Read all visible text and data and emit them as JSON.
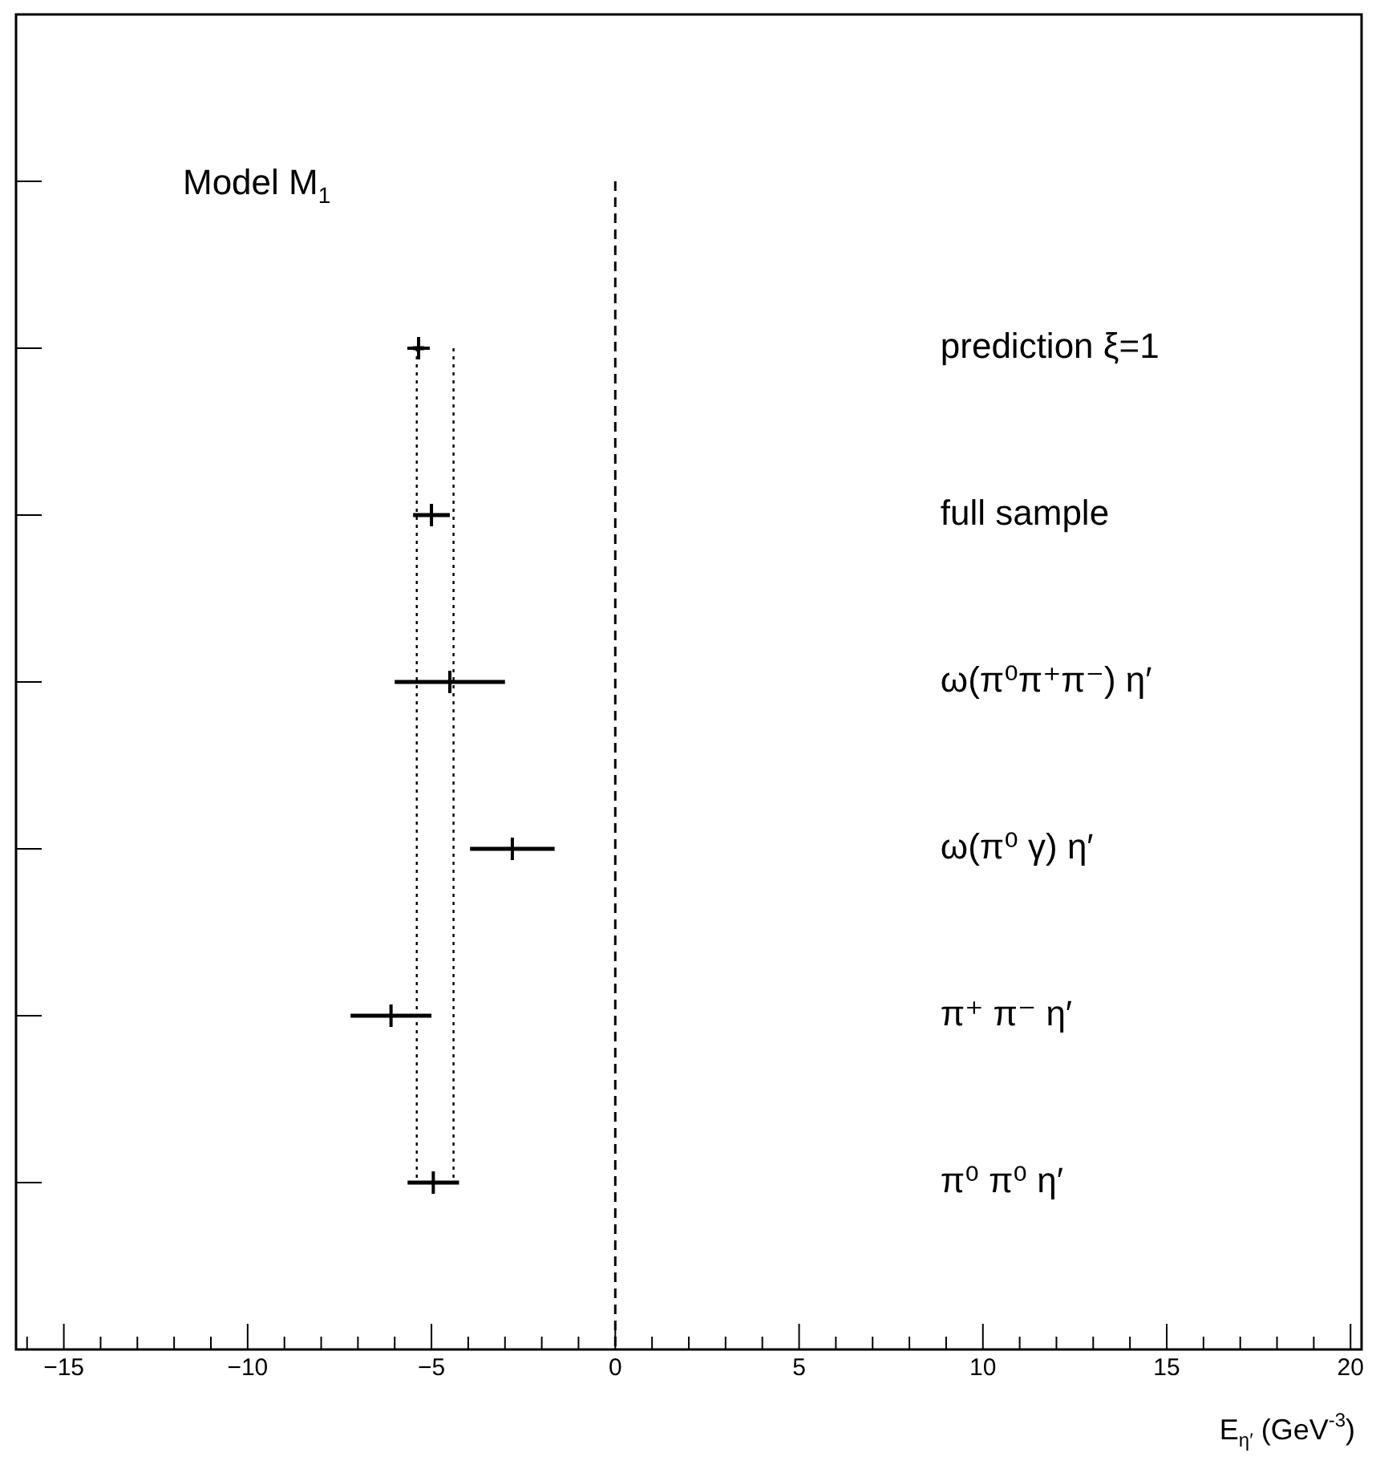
{
  "chart_data": {
    "type": "scatter",
    "orientation": "horizontal",
    "title": "Model M$_{1}$",
    "xlabel": "E$_{η′}$ (GeV$^{-3}$)",
    "categories": [
      null,
      "prediction ξ=1",
      "full sample",
      "ω(π⁰π⁺π⁻) η′",
      "ω(π⁰ γ) η′",
      "π⁺ π⁻ η′",
      "π⁰ π⁰ η′"
    ],
    "series": [
      {
        "color": "#000000",
        "values": [
          null,
          -5.35,
          -5.0,
          -4.5,
          -2.8,
          -6.1,
          -4.95
        ],
        "errors": [
          null,
          0.15,
          0.5,
          1.5,
          1.15,
          1.1,
          0.7
        ]
      }
    ],
    "marker": "cross",
    "tick_labels": "x",
    "grid": false,
    "legend": false,
    "xlim": [
      -16.3,
      20.3
    ],
    "xticks": [
      {
        "value": -16,
        "label": null
      },
      -15,
      {
        "value": -14,
        "label": null
      },
      {
        "value": -13,
        "label": null
      },
      {
        "value": -12,
        "label": null
      },
      {
        "value": -11,
        "label": null
      },
      -10,
      {
        "value": -9,
        "label": null
      },
      {
        "value": -8,
        "label": null
      },
      {
        "value": -7,
        "label": null
      },
      {
        "value": -6,
        "label": null
      },
      -5,
      {
        "value": -4,
        "label": null
      },
      {
        "value": -3,
        "label": null
      },
      {
        "value": -2,
        "label": null
      },
      {
        "value": -1,
        "label": null
      },
      0,
      {
        "value": 1,
        "label": null
      },
      {
        "value": 2,
        "label": null
      },
      {
        "value": 3,
        "label": null
      },
      {
        "value": 4,
        "label": null
      },
      5,
      {
        "value": 6,
        "label": null
      },
      {
        "value": 7,
        "label": null
      },
      {
        "value": 8,
        "label": null
      },
      {
        "value": 9,
        "label": null
      },
      10,
      {
        "value": 11,
        "label": null
      },
      {
        "value": 12,
        "label": null
      },
      {
        "value": 13,
        "label": null
      },
      {
        "value": 14,
        "label": null
      },
      15,
      {
        "value": 16,
        "label": null
      },
      {
        "value": 17,
        "label": null
      },
      {
        "value": 18,
        "label": null
      },
      {
        "value": 19,
        "label": null
      },
      20
    ],
    "ref_lines": [
      {
        "axis": "x",
        "value": 0,
        "line_style": "dashed",
        "color": "#000000"
      },
      {
        "axis": "x",
        "value": -5.4,
        "line_style": "dotted",
        "color": "#000000"
      },
      {
        "axis": "x",
        "value": -4.4,
        "line_style": "dotted",
        "color": "#000000"
      }
    ]
  }
}
